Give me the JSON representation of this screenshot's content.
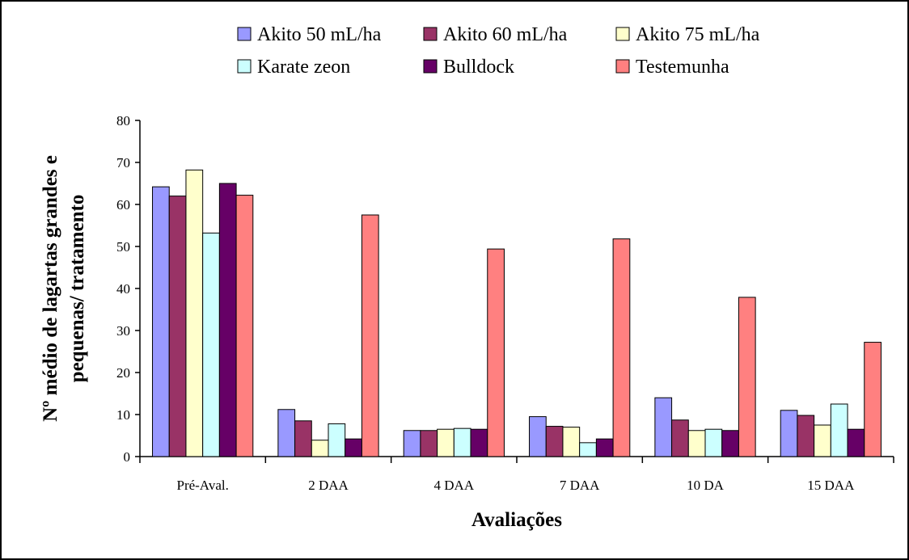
{
  "chart_data": {
    "type": "bar",
    "title": "",
    "xlabel": "Avaliações",
    "ylabel_lines": [
      "Nº médio de lagartas grandes e",
      "pequenas/ tratamento"
    ],
    "ylim": [
      0,
      80
    ],
    "yticks": [
      0,
      10,
      20,
      30,
      40,
      50,
      60,
      70,
      80
    ],
    "grid": false,
    "legend_position": "top",
    "categories": [
      "Pré-Aval.",
      "2 DAA",
      "4 DAA",
      "7 DAA",
      "10 DA",
      "15 DAA"
    ],
    "series": [
      {
        "name": "Akito 50 mL/ha",
        "color": "#9999ff",
        "values": [
          64.2,
          11.2,
          6.2,
          9.5,
          14.0,
          11.0
        ]
      },
      {
        "name": "Akito 60 mL/ha",
        "color": "#993366",
        "values": [
          62.0,
          8.5,
          6.2,
          7.2,
          8.7,
          9.8
        ]
      },
      {
        "name": "Akito 75 mL/ha",
        "color": "#ffffcc",
        "values": [
          68.2,
          3.9,
          6.5,
          7.0,
          6.2,
          7.5
        ]
      },
      {
        "name": "Karate zeon",
        "color": "#ccffff",
        "values": [
          53.2,
          7.8,
          6.7,
          3.3,
          6.5,
          12.5
        ]
      },
      {
        "name": "Bulldock",
        "color": "#660066",
        "values": [
          65.0,
          4.2,
          6.5,
          4.2,
          6.2,
          6.5
        ]
      },
      {
        "name": "Testemunha",
        "color": "#ff8080",
        "values": [
          62.2,
          57.5,
          49.4,
          51.8,
          37.9,
          27.2
        ]
      }
    ]
  }
}
